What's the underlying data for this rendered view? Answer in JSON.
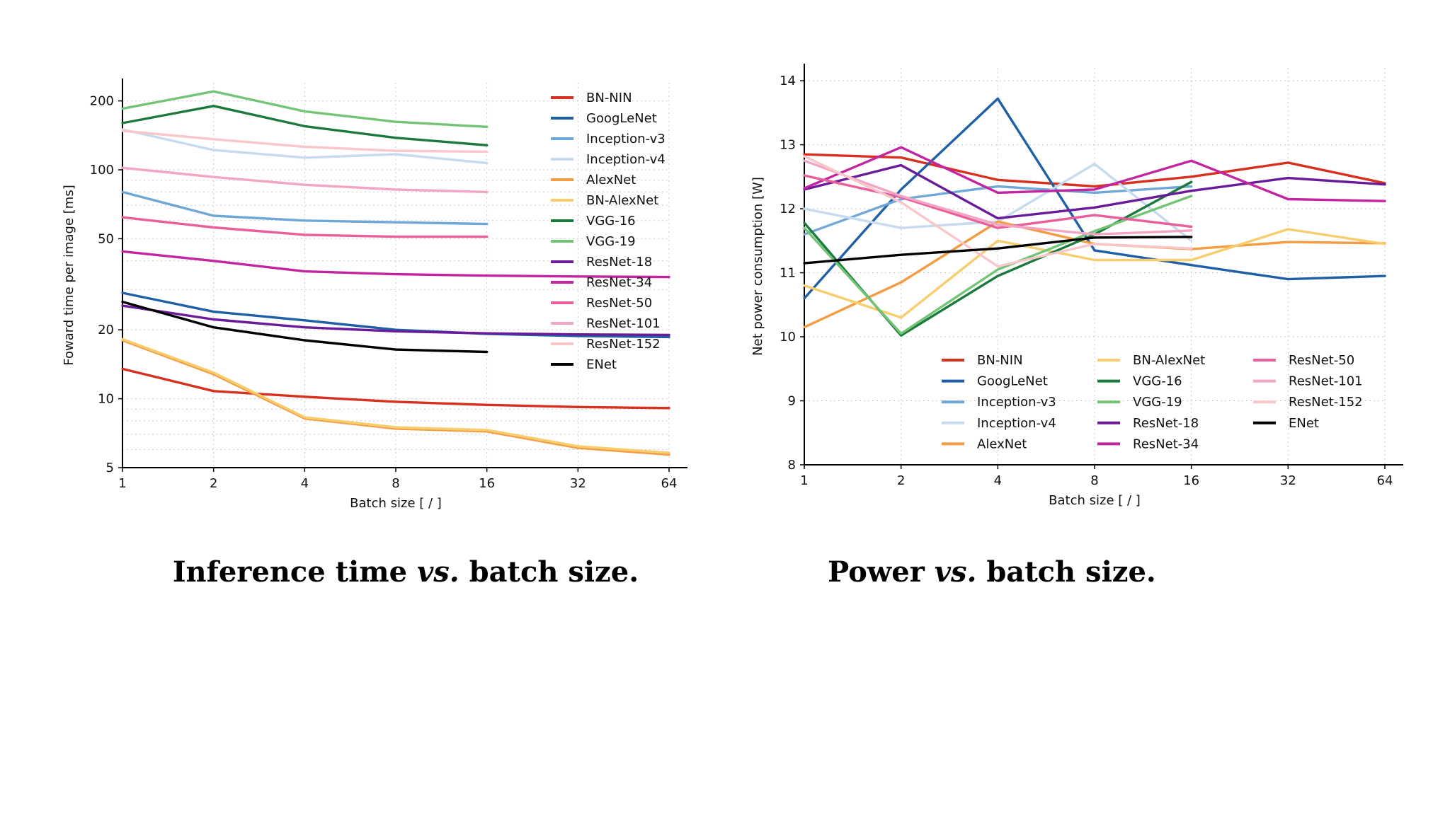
{
  "captions": {
    "left": {
      "part1": "Inference  time ",
      "italic": "vs.",
      "part2": " batch  size."
    },
    "right": {
      "part1": "Power ",
      "italic": "vs.",
      "part2": " batch size."
    }
  },
  "chart_data": [
    {
      "type": "line",
      "title": "",
      "xlabel": "Batch size [ / ]",
      "ylabel": "Foward time per image [ms]",
      "xscale": "log2",
      "yscale": "log",
      "x": [
        1,
        2,
        4,
        8,
        16,
        32,
        64
      ],
      "xticks": [
        "1",
        "2",
        "4",
        "8",
        "16",
        "32",
        "64"
      ],
      "yticks": [
        {
          "v": 5,
          "label": "5"
        },
        {
          "v": 10,
          "label": "10"
        },
        {
          "v": 20,
          "label": "20"
        },
        {
          "v": 50,
          "label": "50"
        },
        {
          "v": 100,
          "label": "100"
        },
        {
          "v": 200,
          "label": "200"
        }
      ],
      "ylim": [
        5,
        240
      ],
      "legend_position": "top-right",
      "series": [
        {
          "name": "BN-NIN",
          "color": "#d7301f",
          "values": [
            13.5,
            10.8,
            10.2,
            9.7,
            9.4,
            9.2,
            9.1
          ]
        },
        {
          "name": "GoogLeNet",
          "color": "#1f5fa6",
          "values": [
            29,
            24,
            22,
            20,
            19.2,
            18.8,
            18.6
          ]
        },
        {
          "name": "Inception-v3",
          "color": "#6fa8d6",
          "values": [
            80,
            63,
            60,
            59,
            58,
            null,
            null
          ]
        },
        {
          "name": "Inception-v4",
          "color": "#c6dbef",
          "values": [
            150,
            122,
            113,
            117,
            107,
            null,
            null
          ]
        },
        {
          "name": "AlexNet",
          "color": "#f59b42",
          "values": [
            18,
            12.8,
            8.2,
            7.4,
            7.2,
            6.1,
            5.7
          ]
        },
        {
          "name": "BN-AlexNet",
          "color": "#f7cd6e",
          "values": [
            18.2,
            13,
            8.3,
            7.5,
            7.3,
            6.2,
            5.8
          ]
        },
        {
          "name": "VGG-16",
          "color": "#1b7a3b",
          "values": [
            160,
            190,
            155,
            138,
            128,
            null,
            null
          ]
        },
        {
          "name": "VGG-19",
          "color": "#74c476",
          "values": [
            185,
            220,
            180,
            162,
            154,
            null,
            null
          ]
        },
        {
          "name": "ResNet-18",
          "color": "#6a1b9a",
          "values": [
            25.5,
            22.2,
            20.5,
            19.7,
            19.3,
            19.1,
            19.0
          ]
        },
        {
          "name": "ResNet-34",
          "color": "#c2259f",
          "values": [
            44,
            40,
            36,
            35,
            34.5,
            34.2,
            34
          ]
        },
        {
          "name": "ResNet-50",
          "color": "#e85f9c",
          "values": [
            62,
            56,
            52,
            51,
            51,
            null,
            null
          ]
        },
        {
          "name": "ResNet-101",
          "color": "#f2a5c4",
          "values": [
            102,
            93,
            86,
            82,
            80,
            null,
            null
          ]
        },
        {
          "name": "ResNet-152",
          "color": "#f9c7c9",
          "values": [
            148,
            136,
            126,
            121,
            120,
            null,
            null
          ]
        },
        {
          "name": "ENet",
          "color": "#000000",
          "values": [
            26.5,
            20.5,
            18.0,
            16.4,
            16.0,
            null,
            null
          ]
        }
      ]
    },
    {
      "type": "line",
      "title": "",
      "xlabel": "Batch size [ / ]",
      "ylabel": "Net power consumption [W]",
      "xscale": "log2",
      "yscale": "linear",
      "x": [
        1,
        2,
        4,
        8,
        16,
        32,
        64
      ],
      "xticks": [
        "1",
        "2",
        "4",
        "8",
        "16",
        "32",
        "64"
      ],
      "yticks": [
        {
          "v": 8,
          "label": "8"
        },
        {
          "v": 9,
          "label": "9"
        },
        {
          "v": 10,
          "label": "10"
        },
        {
          "v": 11,
          "label": "11"
        },
        {
          "v": 12,
          "label": "12"
        },
        {
          "v": 13,
          "label": "13"
        },
        {
          "v": 14,
          "label": "14"
        }
      ],
      "ylim": [
        8,
        14.2
      ],
      "legend_position": "bottom-right",
      "series": [
        {
          "name": "BN-NIN",
          "color": "#d7301f",
          "values": [
            12.85,
            12.8,
            12.45,
            12.35,
            12.5,
            12.72,
            12.4
          ]
        },
        {
          "name": "GoogLeNet",
          "color": "#1f5fa6",
          "values": [
            10.6,
            12.3,
            13.72,
            11.35,
            11.12,
            10.9,
            10.95
          ]
        },
        {
          "name": "Inception-v3",
          "color": "#6fa8d6",
          "values": [
            11.6,
            12.15,
            12.35,
            12.25,
            12.35,
            null,
            null
          ]
        },
        {
          "name": "Inception-v4",
          "color": "#c6dbef",
          "values": [
            12.0,
            11.7,
            11.8,
            12.7,
            11.5,
            null,
            null
          ]
        },
        {
          "name": "AlexNet",
          "color": "#f59b42",
          "values": [
            10.15,
            10.85,
            11.8,
            11.45,
            11.37,
            11.48,
            11.46
          ]
        },
        {
          "name": "BN-AlexNet",
          "color": "#f7cd6e",
          "values": [
            10.8,
            10.3,
            11.5,
            11.2,
            11.2,
            11.68,
            11.45
          ]
        },
        {
          "name": "VGG-16",
          "color": "#1b7a3b",
          "values": [
            11.78,
            10.02,
            10.95,
            11.6,
            12.42,
            null,
            null
          ]
        },
        {
          "name": "VGG-19",
          "color": "#74c476",
          "values": [
            11.7,
            10.05,
            11.05,
            11.65,
            12.2,
            null,
            null
          ]
        },
        {
          "name": "ResNet-18",
          "color": "#6a1b9a",
          "values": [
            12.3,
            12.68,
            11.85,
            12.02,
            12.28,
            12.48,
            12.38
          ]
        },
        {
          "name": "ResNet-34",
          "color": "#c2259f",
          "values": [
            12.32,
            12.96,
            12.25,
            12.3,
            12.75,
            12.15,
            12.12
          ]
        },
        {
          "name": "ResNet-50",
          "color": "#e85f9c",
          "values": [
            12.52,
            12.18,
            11.7,
            11.9,
            11.72,
            null,
            null
          ]
        },
        {
          "name": "ResNet-101",
          "color": "#f2a5c4",
          "values": [
            12.75,
            12.2,
            11.75,
            11.6,
            11.66,
            null,
            null
          ]
        },
        {
          "name": "ResNet-152",
          "color": "#f9c7c9",
          "values": [
            12.82,
            12.1,
            11.1,
            11.45,
            11.38,
            null,
            null
          ]
        },
        {
          "name": "ENet",
          "color": "#000000",
          "values": [
            11.15,
            11.28,
            11.38,
            11.55,
            11.56,
            null,
            null
          ]
        }
      ]
    }
  ]
}
